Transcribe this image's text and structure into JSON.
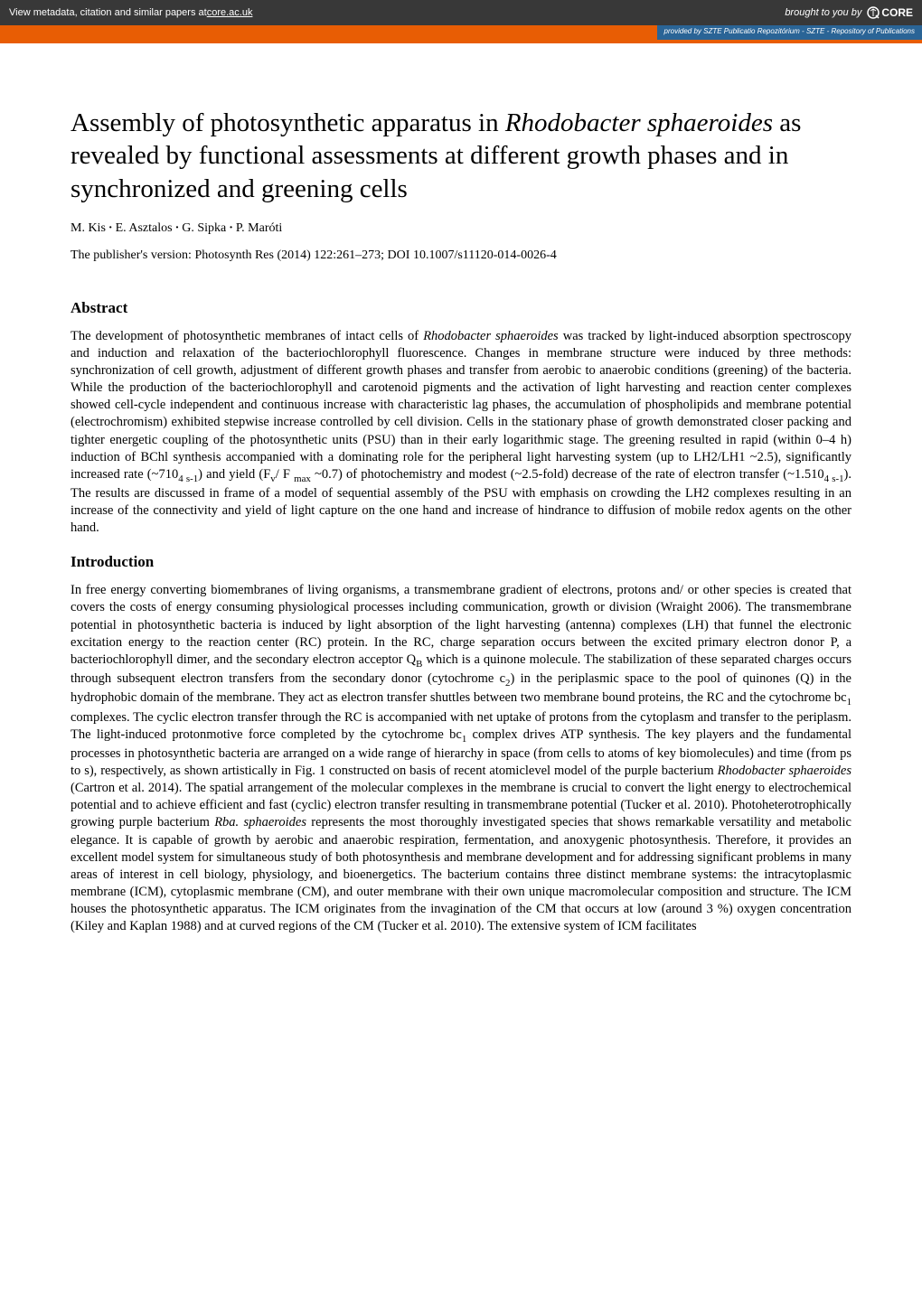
{
  "banner": {
    "left_prefix": "View metadata, citation and similar papers at ",
    "left_link": "core.ac.uk",
    "right_prefix": "brought to you by ",
    "logo_text": "CORE"
  },
  "repo_strip": {
    "prefix": "provided by ",
    "text": "SZTE Publicatio Repozitórium - SZTE - Repository of Publications"
  },
  "title": {
    "part1": "Assembly of photosynthetic apparatus in ",
    "italic": "Rhodobacter sphaeroides",
    "part2": " as revealed by functional assessments at different growth phases and in synchronized and greening cells"
  },
  "authors": [
    "M. Kis",
    "E. Asztalos",
    "G. Sipka",
    "P. Maróti"
  ],
  "pubversion": "The publisher's version: Photosynth Res (2014) 122:261–273; DOI 10.1007/s11120-014-0026-4",
  "headings": {
    "abstract": "Abstract",
    "introduction": "Introduction"
  },
  "abstract": "The development of photosynthetic membranes of intact cells of <span class=\"italic\">Rhodobacter sphaeroides</span> was tracked by light-induced absorption spectroscopy and induction and relaxation of the bacteriochlorophyll fluorescence. Changes in membrane structure were induced by three methods: synchronization of cell growth, adjustment of different growth phases and transfer from aerobic to anaerobic conditions (greening) of the bacteria. While the production of the bacteriochlorophyll and carotenoid pigments and the activation of light harvesting and reaction center complexes showed cell-cycle independent and continuous increase with characteristic lag phases, the accumulation of phospholipids and membrane potential (electrochromism) exhibited stepwise increase controlled by cell division. Cells in the stationary phase of growth demonstrated closer packing and tighter energetic coupling of the photosynthetic units (PSU) than in their early logarithmic stage. The greening resulted in rapid (within 0–4 h) induction of BChl synthesis accompanied with a dominating role for the peripheral light harvesting system (up to LH2/LH1 ~2.5), significantly increased rate (~710<sub>4 s-1</sub>) and yield (F<sub>v</sub>/ F <sub>max</sub> ~0.7) of photochemistry and modest (~2.5-fold) decrease of the rate of electron transfer (~1.510<sub>4 s-1</sub>). The results are discussed in frame of a model of sequential assembly of the PSU with emphasis on crowding the LH2 complexes resulting in an increase of the connectivity and yield of light capture on the one hand and increase of hindrance to diffusion of mobile redox agents on the other hand.",
  "introduction": "In free energy converting biomembranes of living organisms, a transmembrane gradient of electrons, protons and/ or other species is created that covers the costs of energy consuming physiological processes including communication, growth or division (Wraight 2006). The transmembrane potential in photosynthetic bacteria is induced by light absorption of the light harvesting (antenna) complexes (LH) that funnel the electronic excitation energy to the reaction center (RC) protein. In the RC, charge separation occurs between the excited primary electron donor P, a bacteriochlorophyll dimer, and the secondary electron acceptor Q<sub>B</sub> which is a quinone molecule. The stabilization of these separated charges occurs through subsequent electron transfers from the secondary donor (cytochrome c<sub>2</sub>) in the periplasmic space to the pool of quinones (Q) in the hydrophobic domain of the membrane. They act as electron transfer shuttles between two membrane bound proteins, the RC and the cytochrome bc<sub>1</sub> complexes. The cyclic electron transfer through the RC is accompanied with net uptake of protons from the cytoplasm and transfer to the periplasm. The light-induced protonmotive force completed by the cytochrome bc<sub>1</sub> complex drives ATP synthesis. The key players and the fundamental processes in photosynthetic bacteria are arranged on a wide range of hierarchy in space (from cells to atoms of key biomolecules) and time (from ps to s), respectively, as shown artistically in Fig. 1 constructed on basis of recent atomiclevel model of the purple bacterium <span class=\"italic\">Rhodobacter sphaeroides</span> (Cartron et al. 2014). The spatial arrangement of the molecular complexes in the membrane is crucial to convert the light energy to electrochemical potential and to achieve efficient and fast (cyclic) electron transfer resulting in transmembrane potential (Tucker et al. 2010). Photoheterotrophically growing purple bacterium <span class=\"italic\">Rba. sphaeroides</span> represents the most thoroughly investigated species that shows remarkable versatility and metabolic elegance. It is capable of growth by aerobic and anaerobic respiration, fermentation, and anoxygenic photosynthesis. Therefore, it provides an excellent model system for simultaneous study of both photosynthesis and membrane development and for addressing significant problems in many areas of interest in cell biology, physiology, and bioenergetics. The bacterium contains three distinct membrane systems: the intracytoplasmic membrane (ICM), cytoplasmic membrane (CM), and outer membrane with their own unique macromolecular composition and structure. The ICM houses the photosynthetic apparatus. The ICM originates from the invagination of the CM that occurs at low (around 3 %) oxygen concentration (Kiley and Kaplan 1988) and at curved regions of the CM (Tucker et al. 2010). The extensive system of ICM facilitates",
  "colors": {
    "banner_bg": "#383838",
    "banner_text": "#ffffff",
    "orange": "#e85d04",
    "repo_bg": "#2a6496",
    "page_bg": "#ffffff",
    "text": "#000000"
  }
}
